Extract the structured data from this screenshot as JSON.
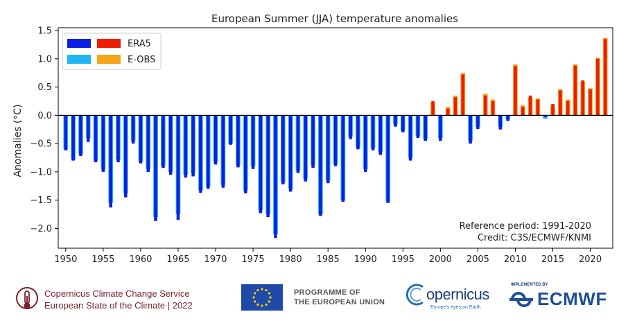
{
  "chart_data": {
    "type": "bar",
    "title": "European Summer (JJA) temperature anomalies",
    "ylabel": "Anomalies (°C)",
    "xlabel": "",
    "xlim": [
      1949,
      2023
    ],
    "ylim": [
      -2.35,
      1.55
    ],
    "yticks": [
      -2.0,
      -1.5,
      -1.0,
      -0.5,
      0.0,
      0.5,
      1.0,
      1.5
    ],
    "ytick_labels": [
      "−2.0",
      "−1.5",
      "−1.0",
      "−0.5",
      "0.0",
      "0.5",
      "1.0",
      "1.5"
    ],
    "xticks": [
      1950,
      1955,
      1960,
      1965,
      1970,
      1975,
      1980,
      1985,
      1990,
      1995,
      2000,
      2005,
      2010,
      2015,
      2020
    ],
    "grid": false,
    "legend_position": "top-left",
    "legend": [
      {
        "label": "ERA5",
        "neg_color": "#0a1fe0",
        "pos_color": "#ee1c00"
      },
      {
        "label": "E-OBS",
        "neg_color": "#22b6f2",
        "pos_color": "#f7a31c"
      }
    ],
    "colors": {
      "era5_negative": "#0a1fe0",
      "era5_positive": "#ee1c00",
      "eobs_negative": "#22b6f2",
      "eobs_positive": "#f7a31c"
    },
    "x": [
      1950,
      1951,
      1952,
      1953,
      1954,
      1955,
      1956,
      1957,
      1958,
      1959,
      1960,
      1961,
      1962,
      1963,
      1964,
      1965,
      1966,
      1967,
      1968,
      1969,
      1970,
      1971,
      1972,
      1973,
      1974,
      1975,
      1976,
      1977,
      1978,
      1979,
      1980,
      1981,
      1982,
      1983,
      1984,
      1985,
      1986,
      1987,
      1988,
      1989,
      1990,
      1991,
      1992,
      1993,
      1994,
      1995,
      1996,
      1997,
      1998,
      1999,
      2000,
      2001,
      2002,
      2003,
      2004,
      2005,
      2006,
      2007,
      2008,
      2009,
      2010,
      2011,
      2012,
      2013,
      2014,
      2015,
      2016,
      2017,
      2018,
      2019,
      2020,
      2021,
      2022
    ],
    "series": [
      {
        "name": "ERA5",
        "values": [
          -0.62,
          -0.8,
          -0.72,
          -0.47,
          -0.83,
          -1.0,
          -1.63,
          -0.83,
          -1.45,
          -0.5,
          -0.85,
          -1.0,
          -1.87,
          -0.93,
          -1.05,
          -1.85,
          -1.1,
          -1.08,
          -1.37,
          -1.3,
          -0.87,
          -1.28,
          -0.52,
          -0.92,
          -1.38,
          -0.95,
          -1.73,
          -1.8,
          -2.17,
          -1.22,
          -1.35,
          -1.02,
          -1.17,
          -0.93,
          -1.78,
          -1.2,
          -0.9,
          -1.53,
          -0.42,
          -0.6,
          -1.0,
          -0.62,
          -0.7,
          -1.55,
          -0.2,
          -0.3,
          -0.8,
          -0.4,
          -0.45,
          0.25,
          -0.45,
          0.12,
          0.32,
          0.72,
          -0.5,
          -0.24,
          0.35,
          0.25,
          -0.25,
          -0.1,
          0.87,
          0.15,
          0.35,
          0.28,
          -0.03,
          0.2,
          0.44,
          0.25,
          0.88,
          0.62,
          0.46,
          1.0,
          1.35
        ]
      },
      {
        "name": "E-OBS",
        "values": [
          -0.6,
          -0.78,
          -0.68,
          -0.4,
          -0.8,
          -0.95,
          -1.55,
          -0.78,
          -1.38,
          -0.45,
          -0.82,
          -0.95,
          -1.8,
          -0.9,
          -1.0,
          -1.75,
          -1.05,
          -1.02,
          -1.32,
          -1.26,
          -0.82,
          -1.23,
          -0.5,
          -0.88,
          -1.33,
          -0.9,
          -1.68,
          -1.75,
          -2.1,
          -1.18,
          -1.3,
          -0.98,
          -1.12,
          -0.88,
          -1.75,
          -1.15,
          -0.86,
          -1.5,
          -0.38,
          -0.57,
          -0.95,
          -0.58,
          -0.65,
          -1.52,
          -0.16,
          -0.27,
          -0.75,
          -0.36,
          -0.42,
          0.23,
          -0.4,
          0.15,
          0.35,
          0.75,
          -0.45,
          -0.2,
          0.38,
          0.28,
          -0.2,
          -0.07,
          0.9,
          0.18,
          0.32,
          0.3,
          -0.06,
          0.18,
          0.46,
          0.28,
          0.9,
          0.6,
          0.48,
          1.02,
          1.37
        ]
      }
    ],
    "annotations": [
      "Reference period: 1991-2020",
      "Credit: C3S/ECMWF/KNMI"
    ]
  },
  "footer": {
    "copernicus_service_line1": "Copernicus Climate Change Service",
    "copernicus_service_line2": "European State of the Climate | 2022",
    "eu_line1": "PROGRAMME OF",
    "eu_line2": "THE EUROPEAN UNION",
    "copernicus_word": "opernicus",
    "copernicus_tagline": "Europe's eyes on Earth",
    "ecmwf_implemented": "IMPLEMENTED BY",
    "ecmwf_word": "ECMWF"
  }
}
